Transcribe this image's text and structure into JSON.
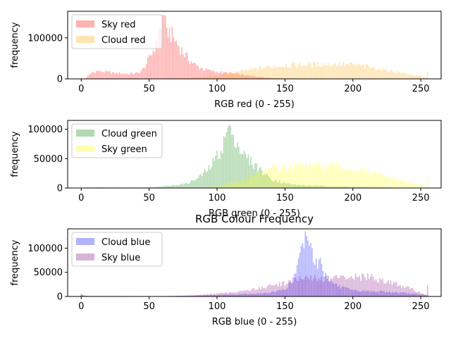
{
  "figure": {
    "title": "RGB Colour Frequency"
  },
  "chart_data": [
    {
      "type": "bar",
      "xlabel": "RGB red (0 - 255)",
      "ylabel": "frequency",
      "xlim": [
        -10,
        265
      ],
      "ylim": [
        0,
        165000
      ],
      "xticks": [
        0,
        50,
        100,
        150,
        200,
        250
      ],
      "yticks": [
        0,
        100000
      ],
      "ytick_labels": [
        "0",
        "100000"
      ],
      "legend_position": "upper-left",
      "series": [
        {
          "name": "Sky red",
          "color": "#ff0000",
          "alpha": 0.3,
          "profile": [
            [
              0,
              0
            ],
            [
              3,
              1000
            ],
            [
              8,
              16000
            ],
            [
              12,
              19000
            ],
            [
              18,
              17000
            ],
            [
              25,
              14000
            ],
            [
              35,
              12500
            ],
            [
              42,
              14000
            ],
            [
              46,
              25000
            ],
            [
              50,
              50000
            ],
            [
              53,
              70000
            ],
            [
              56,
              100000
            ],
            [
              58,
              120000
            ],
            [
              59,
              145000
            ],
            [
              60,
              155000
            ],
            [
              62,
              130000
            ],
            [
              65,
              115000
            ],
            [
              68,
              100000
            ],
            [
              72,
              80000
            ],
            [
              76,
              60000
            ],
            [
              80,
              45000
            ],
            [
              85,
              32000
            ],
            [
              90,
              24000
            ],
            [
              95,
              20000
            ],
            [
              100,
              17000
            ],
            [
              110,
              14000
            ],
            [
              120,
              9000
            ],
            [
              130,
              5000
            ],
            [
              140,
              2500
            ],
            [
              150,
              1200
            ],
            [
              170,
              500
            ],
            [
              200,
              200
            ],
            [
              255,
              0
            ]
          ],
          "spikes": [
            [
              55,
              95000
            ],
            [
              57,
              120000
            ],
            [
              59,
              120000
            ],
            [
              61,
              155000
            ],
            [
              63,
              125000
            ],
            [
              64,
              100000
            ]
          ]
        },
        {
          "name": "Cloud red",
          "color": "#ffa500",
          "alpha": 0.3,
          "profile": [
            [
              0,
              0
            ],
            [
              60,
              0
            ],
            [
              80,
              2000
            ],
            [
              100,
              8000
            ],
            [
              110,
              13000
            ],
            [
              120,
              20000
            ],
            [
              130,
              25000
            ],
            [
              140,
              30000
            ],
            [
              150,
              33000
            ],
            [
              160,
              34000
            ],
            [
              170,
              35000
            ],
            [
              180,
              36000
            ],
            [
              190,
              36000
            ],
            [
              200,
              34000
            ],
            [
              210,
              30000
            ],
            [
              220,
              24000
            ],
            [
              230,
              18000
            ],
            [
              240,
              12000
            ],
            [
              250,
              6000
            ],
            [
              254,
              3000
            ],
            [
              255,
              22000
            ]
          ],
          "spikes": []
        }
      ]
    },
    {
      "type": "bar",
      "xlabel": "RGB green (0 - 255)",
      "ylabel": "frequency",
      "xlim": [
        -10,
        265
      ],
      "ylim": [
        0,
        115000
      ],
      "xticks": [
        0,
        50,
        100,
        150,
        200,
        250
      ],
      "yticks": [
        0,
        50000,
        100000
      ],
      "ytick_labels": [
        "0",
        "50000",
        "100000"
      ],
      "legend_position": "upper-left",
      "series": [
        {
          "name": "Cloud green",
          "color": "#008000",
          "alpha": 0.3,
          "profile": [
            [
              0,
              0
            ],
            [
              5,
              1000
            ],
            [
              30,
              1000
            ],
            [
              50,
              1000
            ],
            [
              60,
              3000
            ],
            [
              70,
              5000
            ],
            [
              78,
              8000
            ],
            [
              85,
              15000
            ],
            [
              90,
              25000
            ],
            [
              95,
              35000
            ],
            [
              100,
              55000
            ],
            [
              104,
              70000
            ],
            [
              106,
              85000
            ],
            [
              108,
              100000
            ],
            [
              110,
              105000
            ],
            [
              113,
              90000
            ],
            [
              116,
              70000
            ],
            [
              120,
              55000
            ],
            [
              125,
              45000
            ],
            [
              130,
              35000
            ],
            [
              135,
              25000
            ],
            [
              140,
              15000
            ],
            [
              150,
              8000
            ],
            [
              160,
              5000
            ],
            [
              180,
              3000
            ],
            [
              200,
              2000
            ],
            [
              255,
              0
            ]
          ],
          "spikes": [
            [
              107,
              95000
            ],
            [
              109,
              108000
            ],
            [
              110,
              105000
            ],
            [
              111,
              90000
            ]
          ]
        },
        {
          "name": "Sky green",
          "color": "#ffff00",
          "alpha": 0.3,
          "profile": [
            [
              0,
              0
            ],
            [
              90,
              0
            ],
            [
              100,
              3000
            ],
            [
              110,
              8000
            ],
            [
              120,
              15000
            ],
            [
              130,
              25000
            ],
            [
              140,
              32000
            ],
            [
              150,
              35000
            ],
            [
              160,
              37000
            ],
            [
              170,
              38000
            ],
            [
              180,
              38000
            ],
            [
              190,
              36000
            ],
            [
              200,
              32000
            ],
            [
              210,
              28000
            ],
            [
              220,
              22000
            ],
            [
              230,
              16000
            ],
            [
              240,
              10000
            ],
            [
              250,
              5000
            ],
            [
              254,
              2000
            ],
            [
              255,
              18000
            ]
          ],
          "spikes": []
        }
      ]
    },
    {
      "type": "bar",
      "xlabel": "RGB blue (0 - 255)",
      "ylabel": "frequency",
      "xlim": [
        -10,
        265
      ],
      "ylim": [
        0,
        140000
      ],
      "xticks": [
        0,
        50,
        100,
        150,
        200,
        250
      ],
      "yticks": [
        0,
        50000,
        100000
      ],
      "ytick_labels": [
        "0",
        "50000",
        "100000"
      ],
      "legend_position": "upper-left",
      "series": [
        {
          "name": "Cloud blue",
          "color": "#0000ff",
          "alpha": 0.3,
          "profile": [
            [
              0,
              3000
            ],
            [
              2,
              1000
            ],
            [
              5,
              500
            ],
            [
              60,
              500
            ],
            [
              80,
              1500
            ],
            [
              100,
              3000
            ],
            [
              110,
              4000
            ],
            [
              120,
              5000
            ],
            [
              130,
              6000
            ],
            [
              140,
              8000
            ],
            [
              150,
              15000
            ],
            [
              155,
              30000
            ],
            [
              158,
              50000
            ],
            [
              160,
              70000
            ],
            [
              162,
              85000
            ],
            [
              164,
              110000
            ],
            [
              165,
              130000
            ],
            [
              167,
              120000
            ],
            [
              170,
              90000
            ],
            [
              173,
              75000
            ],
            [
              176,
              60000
            ],
            [
              180,
              45000
            ],
            [
              185,
              30000
            ],
            [
              190,
              20000
            ],
            [
              200,
              12000
            ],
            [
              220,
              10000
            ],
            [
              235,
              8000
            ],
            [
              245,
              5000
            ],
            [
              255,
              3000
            ]
          ],
          "spikes": [
            [
              162,
              105000
            ],
            [
              165,
              135000
            ],
            [
              166,
              125000
            ],
            [
              168,
              105000
            ],
            [
              170,
              100000
            ],
            [
              176,
              80000
            ]
          ]
        },
        {
          "name": "Sky blue",
          "color": "#800080",
          "alpha": 0.3,
          "profile": [
            [
              0,
              5000
            ],
            [
              2,
              2000
            ],
            [
              5,
              1000
            ],
            [
              60,
              500
            ],
            [
              80,
              2000
            ],
            [
              100,
              6000
            ],
            [
              110,
              8000
            ],
            [
              120,
              12000
            ],
            [
              130,
              16000
            ],
            [
              140,
              22000
            ],
            [
              150,
              28000
            ],
            [
              160,
              35000
            ],
            [
              170,
              38000
            ],
            [
              180,
              37000
            ],
            [
              190,
              38000
            ],
            [
              200,
              40000
            ],
            [
              210,
              40000
            ],
            [
              220,
              36000
            ],
            [
              230,
              28000
            ],
            [
              240,
              18000
            ],
            [
              250,
              8000
            ],
            [
              254,
              3000
            ],
            [
              255,
              22000
            ]
          ],
          "spikes": []
        }
      ]
    }
  ]
}
